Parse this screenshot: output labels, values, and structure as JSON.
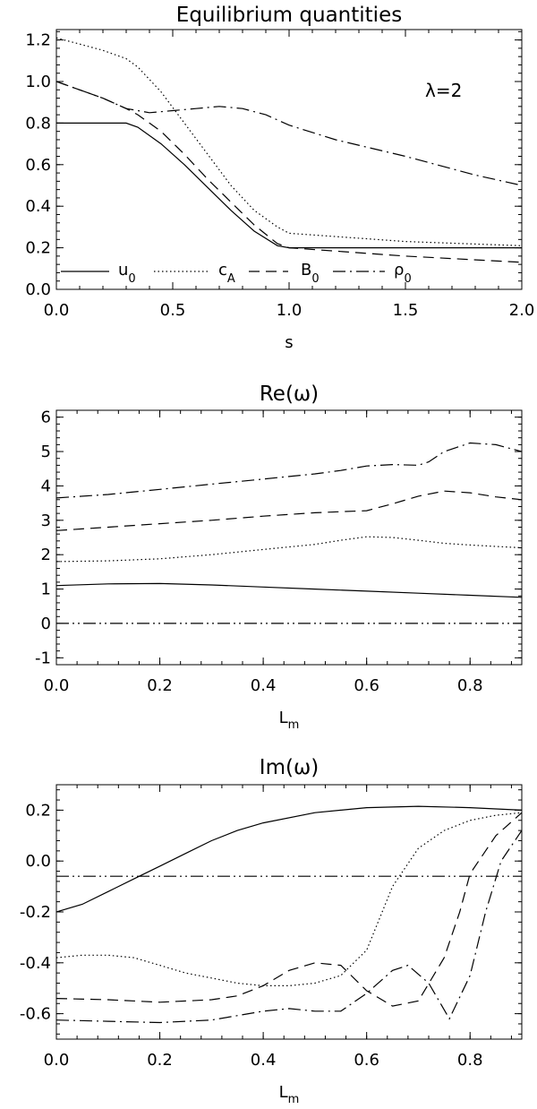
{
  "chart_data": [
    {
      "type": "line",
      "title": "Equilibrium quantities",
      "xlabel": "s",
      "ylabel": "",
      "xlim": [
        0,
        2
      ],
      "ylim": [
        0,
        1.25
      ],
      "xticks": [
        "0.0",
        "0.5",
        "1.0",
        "1.5",
        "2.0"
      ],
      "yticks": [
        "0.0",
        "0.2",
        "0.4",
        "0.6",
        "0.8",
        "1.0",
        "1.2"
      ],
      "annotation": "λ=2",
      "legend": [
        "u",
        "c",
        "B",
        "ρ"
      ],
      "legend_subscripts": [
        "0",
        "A",
        "0",
        "0"
      ],
      "legend_placement": "bottom",
      "series": [
        {
          "style": "solid",
          "x": [
            0,
            0.3,
            0.35,
            0.45,
            0.55,
            0.65,
            0.75,
            0.85,
            0.95,
            1.0,
            1.5,
            2.0
          ],
          "y": [
            0.8,
            0.8,
            0.78,
            0.7,
            0.6,
            0.49,
            0.38,
            0.28,
            0.21,
            0.2,
            0.2,
            0.2
          ]
        },
        {
          "style": "dotted",
          "x": [
            0,
            0.1,
            0.2,
            0.3,
            0.35,
            0.45,
            0.55,
            0.65,
            0.75,
            0.85,
            0.95,
            1.0,
            1.5,
            2.0
          ],
          "y": [
            1.21,
            1.18,
            1.15,
            1.11,
            1.07,
            0.95,
            0.8,
            0.65,
            0.5,
            0.38,
            0.3,
            0.27,
            0.23,
            0.21
          ]
        },
        {
          "style": "dashed",
          "x": [
            0,
            0.1,
            0.2,
            0.3,
            0.35,
            0.45,
            0.55,
            0.65,
            0.75,
            0.85,
            0.95,
            1.0,
            1.5,
            2.0
          ],
          "y": [
            1.0,
            0.96,
            0.92,
            0.87,
            0.84,
            0.76,
            0.65,
            0.53,
            0.42,
            0.31,
            0.22,
            0.2,
            0.16,
            0.13
          ]
        },
        {
          "style": "dash-dot",
          "x": [
            0,
            0.1,
            0.2,
            0.3,
            0.4,
            0.5,
            0.6,
            0.7,
            0.8,
            0.9,
            1.0,
            1.2,
            1.5,
            1.8,
            2.0
          ],
          "y": [
            1.0,
            0.96,
            0.92,
            0.87,
            0.85,
            0.86,
            0.87,
            0.88,
            0.87,
            0.84,
            0.79,
            0.72,
            0.64,
            0.55,
            0.5
          ]
        }
      ]
    },
    {
      "type": "line",
      "title": "Re(ω)",
      "xlabel": "L",
      "xlabel_sub": "m",
      "ylabel": "",
      "xlim": [
        0,
        0.9
      ],
      "ylim": [
        -1.2,
        6.2
      ],
      "xticks": [
        "0.0",
        "0.2",
        "0.4",
        "0.6",
        "0.8"
      ],
      "yticks": [
        "-1",
        "0",
        "1",
        "2",
        "3",
        "4",
        "5",
        "6"
      ],
      "series": [
        {
          "style": "solid",
          "x": [
            0,
            0.1,
            0.2,
            0.3,
            0.4,
            0.5,
            0.6,
            0.7,
            0.8,
            0.9
          ],
          "y": [
            1.1,
            1.15,
            1.16,
            1.12,
            1.06,
            1.0,
            0.94,
            0.88,
            0.82,
            0.76
          ]
        },
        {
          "style": "dotted",
          "x": [
            0,
            0.1,
            0.2,
            0.3,
            0.4,
            0.5,
            0.55,
            0.6,
            0.65,
            0.7,
            0.75,
            0.8,
            0.85,
            0.9
          ],
          "y": [
            1.8,
            1.82,
            1.88,
            2.0,
            2.15,
            2.3,
            2.42,
            2.52,
            2.5,
            2.42,
            2.33,
            2.28,
            2.24,
            2.2
          ]
        },
        {
          "style": "dashed",
          "x": [
            0,
            0.1,
            0.2,
            0.3,
            0.4,
            0.5,
            0.55,
            0.6,
            0.65,
            0.7,
            0.75,
            0.8,
            0.85,
            0.9
          ],
          "y": [
            2.7,
            2.8,
            2.9,
            3.0,
            3.12,
            3.22,
            3.25,
            3.28,
            3.48,
            3.7,
            3.85,
            3.8,
            3.68,
            3.6
          ]
        },
        {
          "style": "dash-dot",
          "x": [
            0,
            0.1,
            0.2,
            0.3,
            0.4,
            0.5,
            0.55,
            0.6,
            0.65,
            0.7,
            0.72,
            0.75,
            0.8,
            0.85,
            0.9
          ],
          "y": [
            3.65,
            3.75,
            3.9,
            4.05,
            4.2,
            4.35,
            4.45,
            4.58,
            4.62,
            4.6,
            4.7,
            5.0,
            5.25,
            5.2,
            5.0
          ]
        },
        {
          "style": "dash-dot-dot",
          "x": [
            0,
            0.9
          ],
          "y": [
            0,
            0
          ]
        }
      ]
    },
    {
      "type": "line",
      "title": "Im(ω)",
      "xlabel": "L",
      "xlabel_sub": "m",
      "ylabel": "",
      "xlim": [
        0,
        0.9
      ],
      "ylim": [
        -0.7,
        0.3
      ],
      "xticks": [
        "0.0",
        "0.2",
        "0.4",
        "0.6",
        "0.8"
      ],
      "yticks": [
        "-0.6",
        "-0.4",
        "-0.2",
        "0.0",
        "0.2"
      ],
      "series": [
        {
          "style": "solid",
          "x": [
            0,
            0.05,
            0.1,
            0.15,
            0.2,
            0.25,
            0.3,
            0.35,
            0.4,
            0.5,
            0.6,
            0.7,
            0.8,
            0.9
          ],
          "y": [
            -0.2,
            -0.17,
            -0.12,
            -0.07,
            -0.02,
            0.03,
            0.08,
            0.12,
            0.15,
            0.19,
            0.21,
            0.215,
            0.21,
            0.2
          ]
        },
        {
          "style": "dotted",
          "x": [
            0,
            0.05,
            0.1,
            0.15,
            0.2,
            0.25,
            0.3,
            0.35,
            0.4,
            0.45,
            0.5,
            0.55,
            0.6,
            0.65,
            0.7,
            0.75,
            0.8,
            0.85,
            0.9
          ],
          "y": [
            -0.38,
            -0.37,
            -0.37,
            -0.38,
            -0.41,
            -0.44,
            -0.46,
            -0.48,
            -0.49,
            -0.49,
            -0.48,
            -0.45,
            -0.35,
            -0.1,
            0.05,
            0.12,
            0.16,
            0.18,
            0.19
          ]
        },
        {
          "style": "dashed",
          "x": [
            0,
            0.1,
            0.2,
            0.3,
            0.35,
            0.4,
            0.45,
            0.5,
            0.55,
            0.6,
            0.65,
            0.7,
            0.75,
            0.78,
            0.8,
            0.85,
            0.9
          ],
          "y": [
            -0.54,
            -0.545,
            -0.555,
            -0.545,
            -0.53,
            -0.49,
            -0.43,
            -0.4,
            -0.41,
            -0.51,
            -0.57,
            -0.55,
            -0.38,
            -0.2,
            -0.05,
            0.1,
            0.19
          ]
        },
        {
          "style": "dash-dot",
          "x": [
            0,
            0.1,
            0.2,
            0.3,
            0.4,
            0.45,
            0.5,
            0.55,
            0.6,
            0.65,
            0.68,
            0.72,
            0.76,
            0.8,
            0.83,
            0.86,
            0.9
          ],
          "y": [
            -0.625,
            -0.63,
            -0.635,
            -0.625,
            -0.59,
            -0.58,
            -0.59,
            -0.59,
            -0.52,
            -0.43,
            -0.41,
            -0.48,
            -0.62,
            -0.45,
            -0.2,
            0.0,
            0.12
          ]
        },
        {
          "style": "dash-dot-dot",
          "x": [
            0,
            0.9
          ],
          "y": [
            -0.06,
            -0.06
          ]
        }
      ]
    }
  ]
}
